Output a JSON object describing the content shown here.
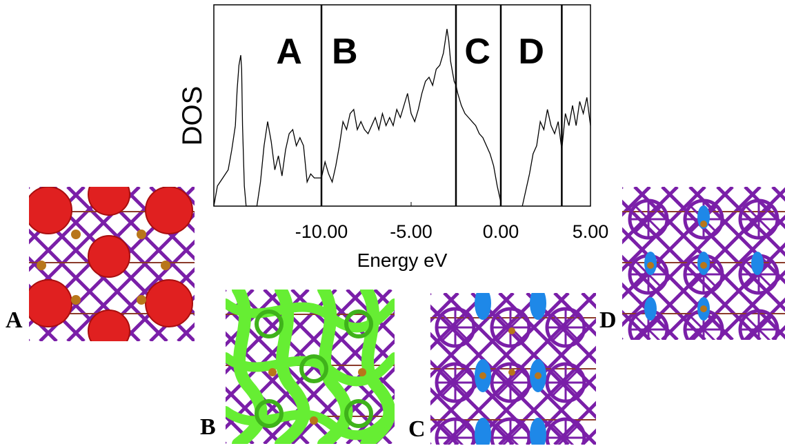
{
  "chart_data": {
    "type": "line",
    "ylabel": "DOS",
    "xlabel": "Energy eV",
    "xlim": [
      -16.0,
      5.0
    ],
    "ylim": [
      0,
      100
    ],
    "y_ticks_shown": false,
    "x_tick_labels": [
      "-10.00",
      "-5.00",
      "0.00",
      "5.00"
    ],
    "x_ticks": [
      -10,
      -5,
      0,
      5
    ],
    "region_boundaries": [
      -10.0,
      -2.5,
      0.0,
      3.4
    ],
    "regions": [
      {
        "label": "A",
        "from": -16.0,
        "to": -10.0
      },
      {
        "label": "B",
        "from": -10.0,
        "to": -2.5
      },
      {
        "label": "C",
        "from": -2.5,
        "to": 0.0
      },
      {
        "label": "D",
        "from": 0.0,
        "to": 3.4
      }
    ],
    "series": [
      {
        "color": "#000000",
        "x": [
          -16.0,
          -15.8,
          -15.5,
          -15.2,
          -15.0,
          -14.8,
          -14.7,
          -14.6,
          -14.5,
          -14.45,
          -14.4,
          -14.3,
          -14.2,
          -13.6,
          -13.4,
          -13.2,
          -13.0,
          -12.8,
          -12.6,
          -12.4,
          -12.2,
          -12.0,
          -11.8,
          -11.6,
          -11.4,
          -11.2,
          -11.0,
          -10.8,
          -10.6,
          -10.4,
          -10.2,
          -10.0,
          -9.8,
          -9.6,
          -9.4,
          -9.2,
          -9.0,
          -8.8,
          -8.6,
          -8.4,
          -8.2,
          -8.0,
          -7.8,
          -7.6,
          -7.4,
          -7.2,
          -7.0,
          -6.8,
          -6.6,
          -6.4,
          -6.2,
          -6.0,
          -5.8,
          -5.6,
          -5.4,
          -5.2,
          -5.0,
          -4.8,
          -4.6,
          -4.4,
          -4.2,
          -4.0,
          -3.8,
          -3.6,
          -3.4,
          -3.2,
          -3.0,
          -2.9,
          -2.8,
          -2.6,
          -2.5,
          -2.4,
          -2.2,
          -2.0,
          -1.8,
          -1.6,
          -1.4,
          -1.2,
          -1.0,
          -0.8,
          -0.6,
          -0.4,
          -0.2,
          0.0
        ],
        "y": [
          0,
          10,
          14,
          18,
          28,
          40,
          58,
          70,
          75,
          68,
          40,
          10,
          0,
          0,
          12,
          30,
          42,
          32,
          18,
          25,
          15,
          28,
          36,
          38,
          30,
          34,
          30,
          12,
          16,
          14,
          14,
          14,
          22,
          16,
          12,
          20,
          30,
          42,
          38,
          46,
          48,
          38,
          42,
          38,
          36,
          40,
          44,
          38,
          46,
          40,
          44,
          40,
          48,
          44,
          50,
          56,
          46,
          42,
          48,
          56,
          62,
          64,
          60,
          68,
          70,
          76,
          88,
          82,
          72,
          62,
          60,
          56,
          50,
          46,
          44,
          42,
          40,
          36,
          34,
          30,
          26,
          20,
          10,
          2
        ]
      },
      {
        "color": "#000000",
        "x": [
          1.2,
          1.4,
          1.6,
          1.8,
          2.0,
          2.2,
          2.4,
          2.6,
          2.8,
          3.0,
          3.2,
          3.4,
          3.6,
          3.8,
          4.0,
          4.2,
          4.4,
          4.6,
          4.8,
          5.0
        ],
        "y": [
          0,
          8,
          16,
          26,
          30,
          42,
          38,
          48,
          40,
          36,
          42,
          28,
          46,
          40,
          50,
          40,
          52,
          46,
          54,
          40
        ]
      }
    ]
  },
  "panels": [
    {
      "letter": "A",
      "color": "#e02020"
    },
    {
      "letter": "B",
      "color": "#66ee33"
    },
    {
      "letter": "C",
      "color": "#1e88e8"
    },
    {
      "letter": "D",
      "color": "#1e88e8"
    }
  ],
  "colors": {
    "bond_purple": "#7a1fa8",
    "bond_brown": "#8b3a2a",
    "atom_gold": "#b8761a"
  }
}
